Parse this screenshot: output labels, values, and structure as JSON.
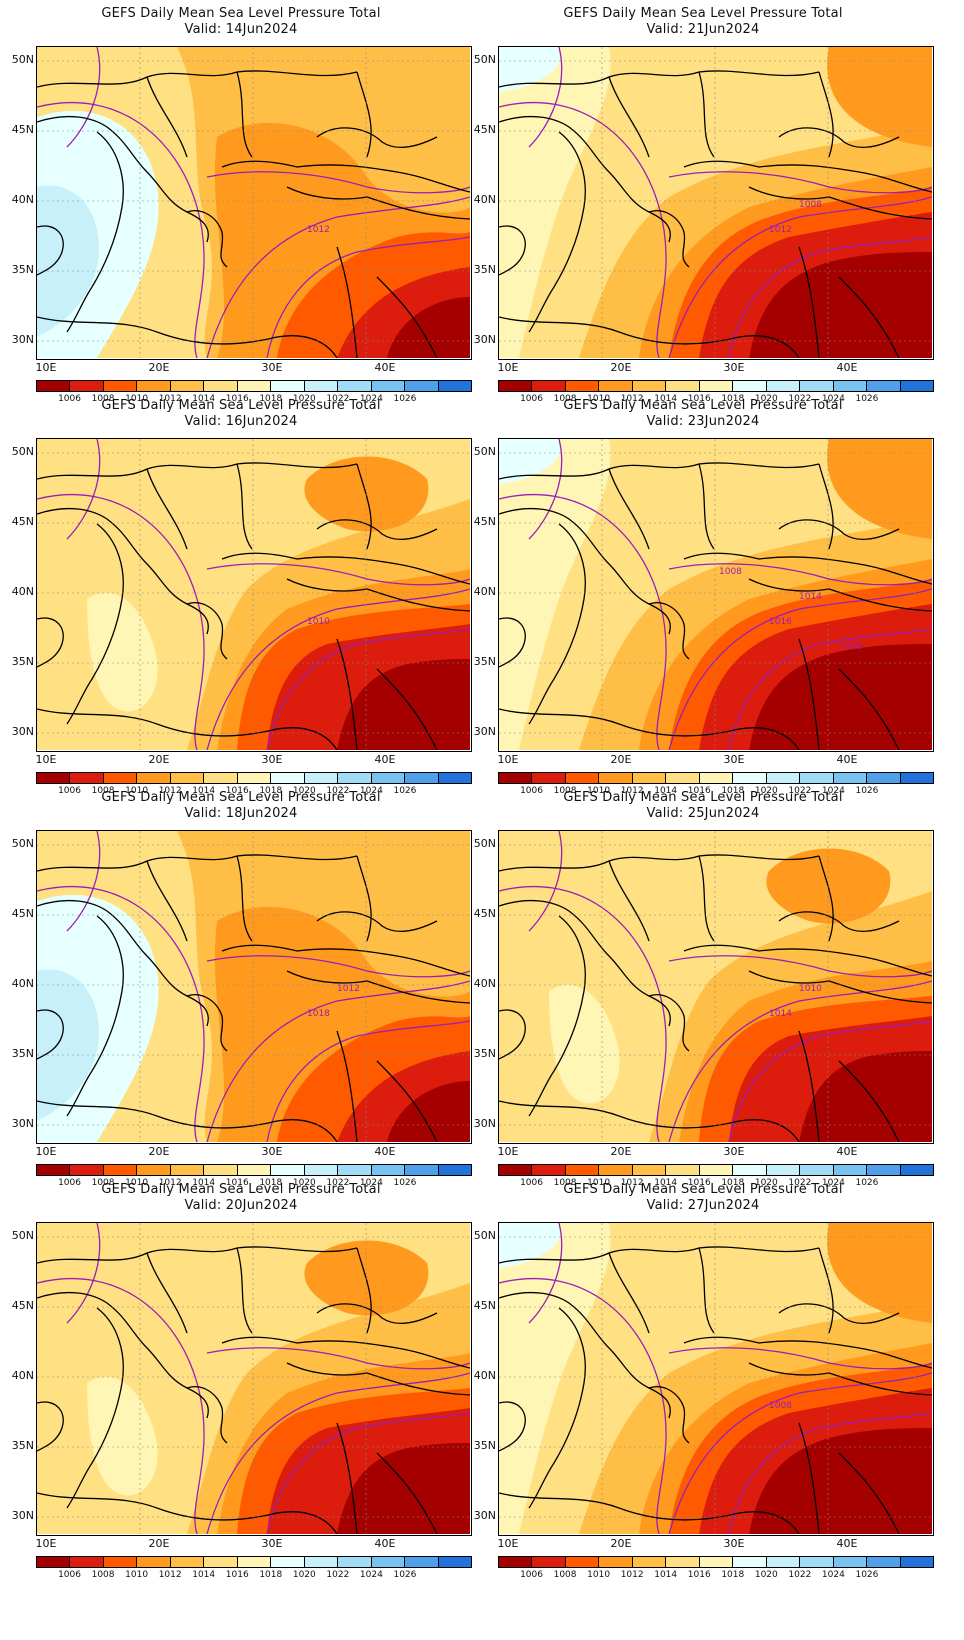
{
  "colorbar": {
    "colors": [
      "#a50000",
      "#dc1c0c",
      "#ff5a00",
      "#ff9a1e",
      "#ffbe46",
      "#ffe082",
      "#fff5b4",
      "#e6ffff",
      "#c8f0fa",
      "#a0dcf5",
      "#78c3f0",
      "#4fa0eb",
      "#2373dc"
    ],
    "labels": [
      "1006",
      "1008",
      "1010",
      "1012",
      "1014",
      "1016",
      "1018",
      "1020",
      "1022",
      "1024",
      "1026"
    ]
  },
  "axes": {
    "lat_labels": [
      "50N",
      "45N",
      "40N",
      "35N",
      "30N"
    ],
    "lon_labels": [
      "10E",
      "20E",
      "30E",
      "40E"
    ]
  },
  "panels": [
    {
      "title": "GEFS Daily Mean Sea Level Pressure Total",
      "valid": "Valid: 14Jun2024",
      "contour_labels": [
        "1012"
      ],
      "pattern": "wet"
    },
    {
      "title": "GEFS Daily Mean Sea Level Pressure Total",
      "valid": "Valid: 21Jun2024",
      "contour_labels": [
        "1012",
        "1008"
      ],
      "pattern": "mid"
    },
    {
      "title": "GEFS Daily Mean Sea Level Pressure Total",
      "valid": "Valid: 16Jun2024",
      "contour_labels": [
        "1010"
      ],
      "pattern": "low"
    },
    {
      "title": "GEFS Daily Mean Sea Level Pressure Total",
      "valid": "Valid: 23Jun2024",
      "contour_labels": [
        "1016",
        "1014",
        "1008",
        "1008"
      ],
      "pattern": "mid"
    },
    {
      "title": "GEFS Daily Mean Sea Level Pressure Total",
      "valid": "Valid: 18Jun2024",
      "contour_labels": [
        "1018",
        "1012"
      ],
      "pattern": "wet"
    },
    {
      "title": "GEFS Daily Mean Sea Level Pressure Total",
      "valid": "Valid: 25Jun2024",
      "contour_labels": [
        "1014",
        "1010"
      ],
      "pattern": "low"
    },
    {
      "title": "GEFS Daily Mean Sea Level Pressure Total",
      "valid": "Valid: 20Jun2024",
      "contour_labels": [],
      "pattern": "low"
    },
    {
      "title": "GEFS Daily Mean Sea Level Pressure Total",
      "valid": "Valid: 27Jun2024",
      "contour_labels": [
        "1008"
      ],
      "pattern": "mid"
    }
  ]
}
